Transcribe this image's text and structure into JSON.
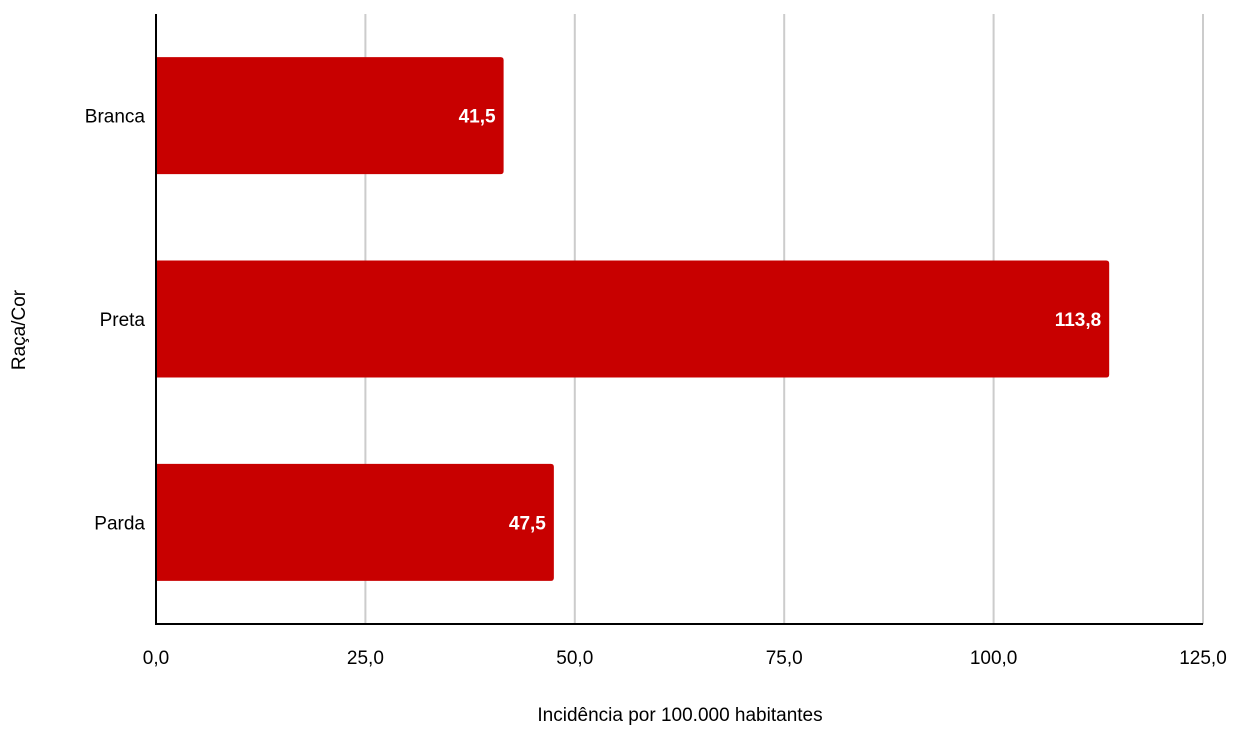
{
  "chart_data": {
    "type": "bar",
    "orientation": "horizontal",
    "categories": [
      "Branca",
      "Preta",
      "Parda"
    ],
    "values": [
      41.5,
      113.8,
      47.5
    ],
    "value_labels": [
      "41,5",
      "113,8",
      "47,5"
    ],
    "xlabel": "Incidência por 100.000 habitantes",
    "ylabel": "Raça/Cor",
    "xlim": [
      0,
      125
    ],
    "x_ticks": [
      0,
      25,
      50,
      75,
      100,
      125
    ],
    "x_tick_labels": [
      "0,0",
      "25,0",
      "50,0",
      "75,0",
      "100,0",
      "125,0"
    ],
    "grid": "vertical",
    "legend": "none",
    "colors": {
      "bar": "#c80000",
      "grid": "#cccccc",
      "axis": "#000000",
      "value_label": "#ffffff",
      "text": "#000000"
    }
  }
}
